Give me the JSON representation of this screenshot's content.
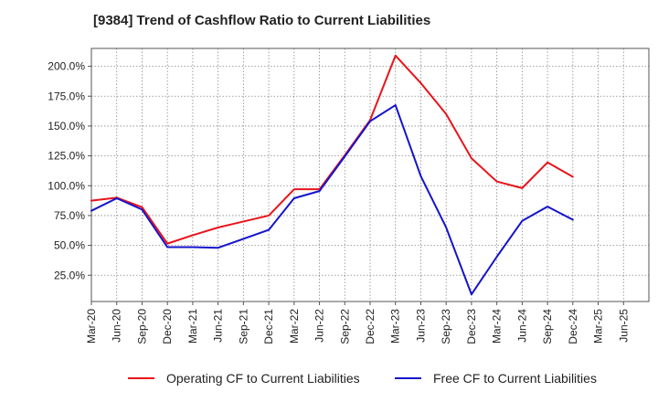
{
  "chart_data": {
    "type": "line",
    "title": "[9384]  Trend of Cashflow Ratio to Current Liabilities",
    "xlabel": "",
    "ylabel": "",
    "x": [
      "Mar-20",
      "Jun-20",
      "Sep-20",
      "Dec-20",
      "Mar-21",
      "Jun-21",
      "Sep-21",
      "Dec-21",
      "Mar-22",
      "Jun-22",
      "Sep-22",
      "Dec-22",
      "Mar-23",
      "Jun-23",
      "Sep-23",
      "Dec-23",
      "Mar-24",
      "Jun-24",
      "Sep-24",
      "Dec-24",
      "Mar-25",
      "Jun-25"
    ],
    "ylim": [
      3,
      215
    ],
    "yticks": [
      25,
      50,
      75,
      100,
      125,
      150,
      175,
      200
    ],
    "ytick_labels": [
      "25.0%",
      "50.0%",
      "75.0%",
      "100.0%",
      "125.0%",
      "150.0%",
      "175.0%",
      "200.0%"
    ],
    "grid": true,
    "legend_position": "bottom",
    "series": [
      {
        "name": "Operating CF to Current Liabilities",
        "color": "#e8141b",
        "values": [
          87.5,
          90,
          82,
          51.5,
          58.5,
          65,
          70,
          75,
          97,
          97,
          125.5,
          155,
          209,
          186,
          160,
          123,
          103.5,
          98,
          119.5,
          107.5,
          null,
          null
        ]
      },
      {
        "name": "Free CF to Current Liabilities",
        "color": "#1414cc",
        "values": [
          79,
          89.5,
          80,
          48.5,
          48.5,
          48,
          55.5,
          63,
          89.5,
          95.5,
          124.5,
          154,
          167.5,
          108,
          65,
          9,
          40.5,
          70.5,
          82.5,
          71.5,
          null,
          null
        ]
      }
    ]
  }
}
